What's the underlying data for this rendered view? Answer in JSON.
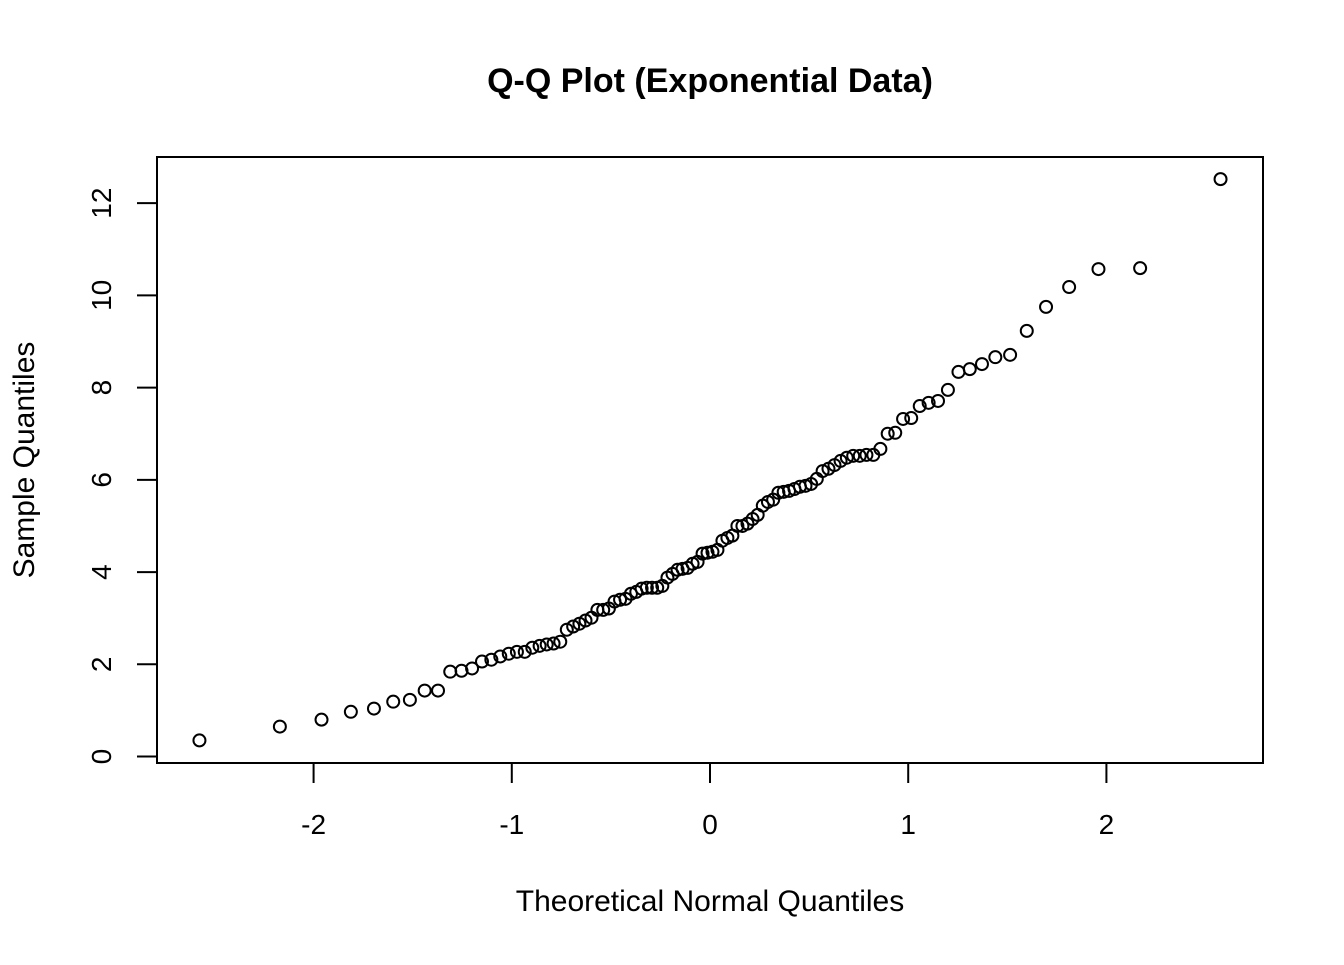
{
  "chart_data": {
    "type": "scatter",
    "title": "Q-Q Plot (Exponential Data)",
    "xlabel": "Theoretical Normal Quantiles",
    "ylabel": "Sample Quantiles",
    "xlim": [
      -2.79,
      2.79
    ],
    "ylim": [
      -0.14,
      13.0
    ],
    "x_ticks": [
      -2,
      -1,
      0,
      1,
      2
    ],
    "y_ticks": [
      0,
      2,
      4,
      6,
      8,
      10,
      12
    ],
    "x_tick_labels": [
      "-2",
      "-1",
      "0",
      "1",
      "2"
    ],
    "y_tick_labels": [
      "0",
      "2",
      "4",
      "6",
      "8",
      "10",
      "12"
    ],
    "x_definition": "normal quantiles of (i-0.5)/n, n = 100",
    "grid": false,
    "legend": "none",
    "marker": "open-circle",
    "y_sorted_sample": [
      0.35,
      0.65,
      0.8,
      0.97,
      1.04,
      1.19,
      1.23,
      1.43,
      1.43,
      1.84,
      1.86,
      1.91,
      2.06,
      2.1,
      2.17,
      2.23,
      2.27,
      2.27,
      2.36,
      2.4,
      2.43,
      2.45,
      2.49,
      2.75,
      2.82,
      2.88,
      2.95,
      3.01,
      3.18,
      3.18,
      3.21,
      3.36,
      3.4,
      3.42,
      3.53,
      3.57,
      3.64,
      3.66,
      3.66,
      3.66,
      3.7,
      3.88,
      3.96,
      4.05,
      4.07,
      4.09,
      4.18,
      4.22,
      4.4,
      4.42,
      4.44,
      4.48,
      4.68,
      4.74,
      4.79,
      5.0,
      5.0,
      5.05,
      5.15,
      5.24,
      5.44,
      5.52,
      5.57,
      5.72,
      5.74,
      5.76,
      5.8,
      5.85,
      5.87,
      5.91,
      6.02,
      6.19,
      6.24,
      6.32,
      6.41,
      6.48,
      6.52,
      6.52,
      6.54,
      6.54,
      6.67,
      7.0,
      7.02,
      7.32,
      7.34,
      7.6,
      7.67,
      7.71,
      7.95,
      8.34,
      8.4,
      8.51,
      8.66,
      8.71,
      9.23,
      9.75,
      10.18,
      10.57,
      10.59,
      12.52
    ]
  }
}
